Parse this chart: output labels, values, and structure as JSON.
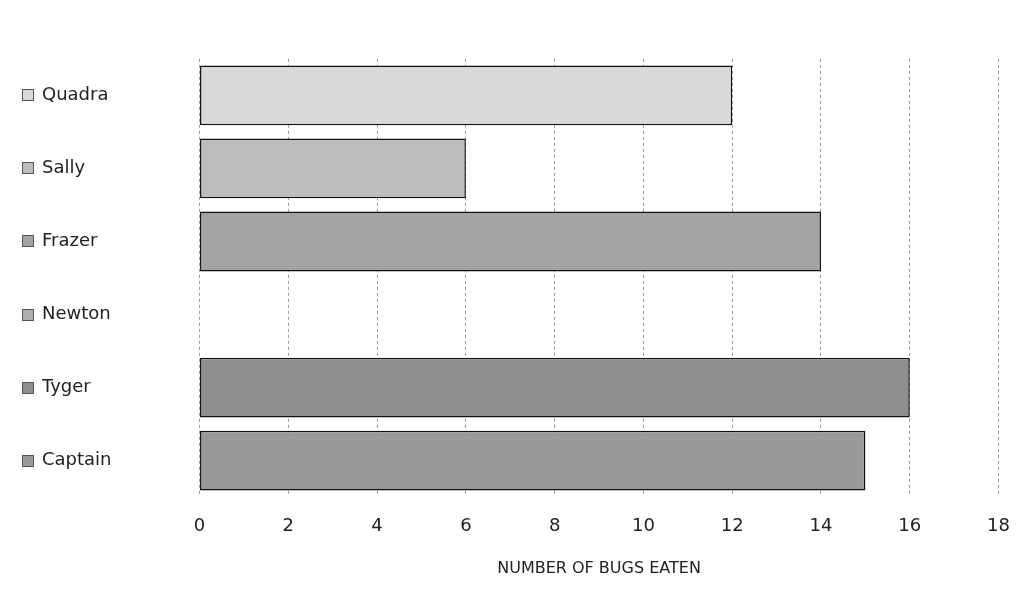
{
  "chart_data": {
    "type": "bar",
    "orientation": "horizontal",
    "xlabel": "NUMBER OF BUGS EATEN",
    "categories": [
      "Quadra",
      "Sally",
      "Frazer",
      "Newton",
      "Tyger",
      "Captain"
    ],
    "values": [
      12,
      6,
      14,
      0,
      16,
      15
    ],
    "colors": [
      "#d9d9d9",
      "#bdbdbd",
      "#a3a3a3",
      "#b0b0b0",
      "#8e8e8e",
      "#999999"
    ],
    "xlim": [
      0,
      18
    ],
    "xticks": [
      0,
      2,
      4,
      6,
      8,
      10,
      12,
      14,
      16,
      18
    ],
    "grid": "x",
    "legend": false
  }
}
